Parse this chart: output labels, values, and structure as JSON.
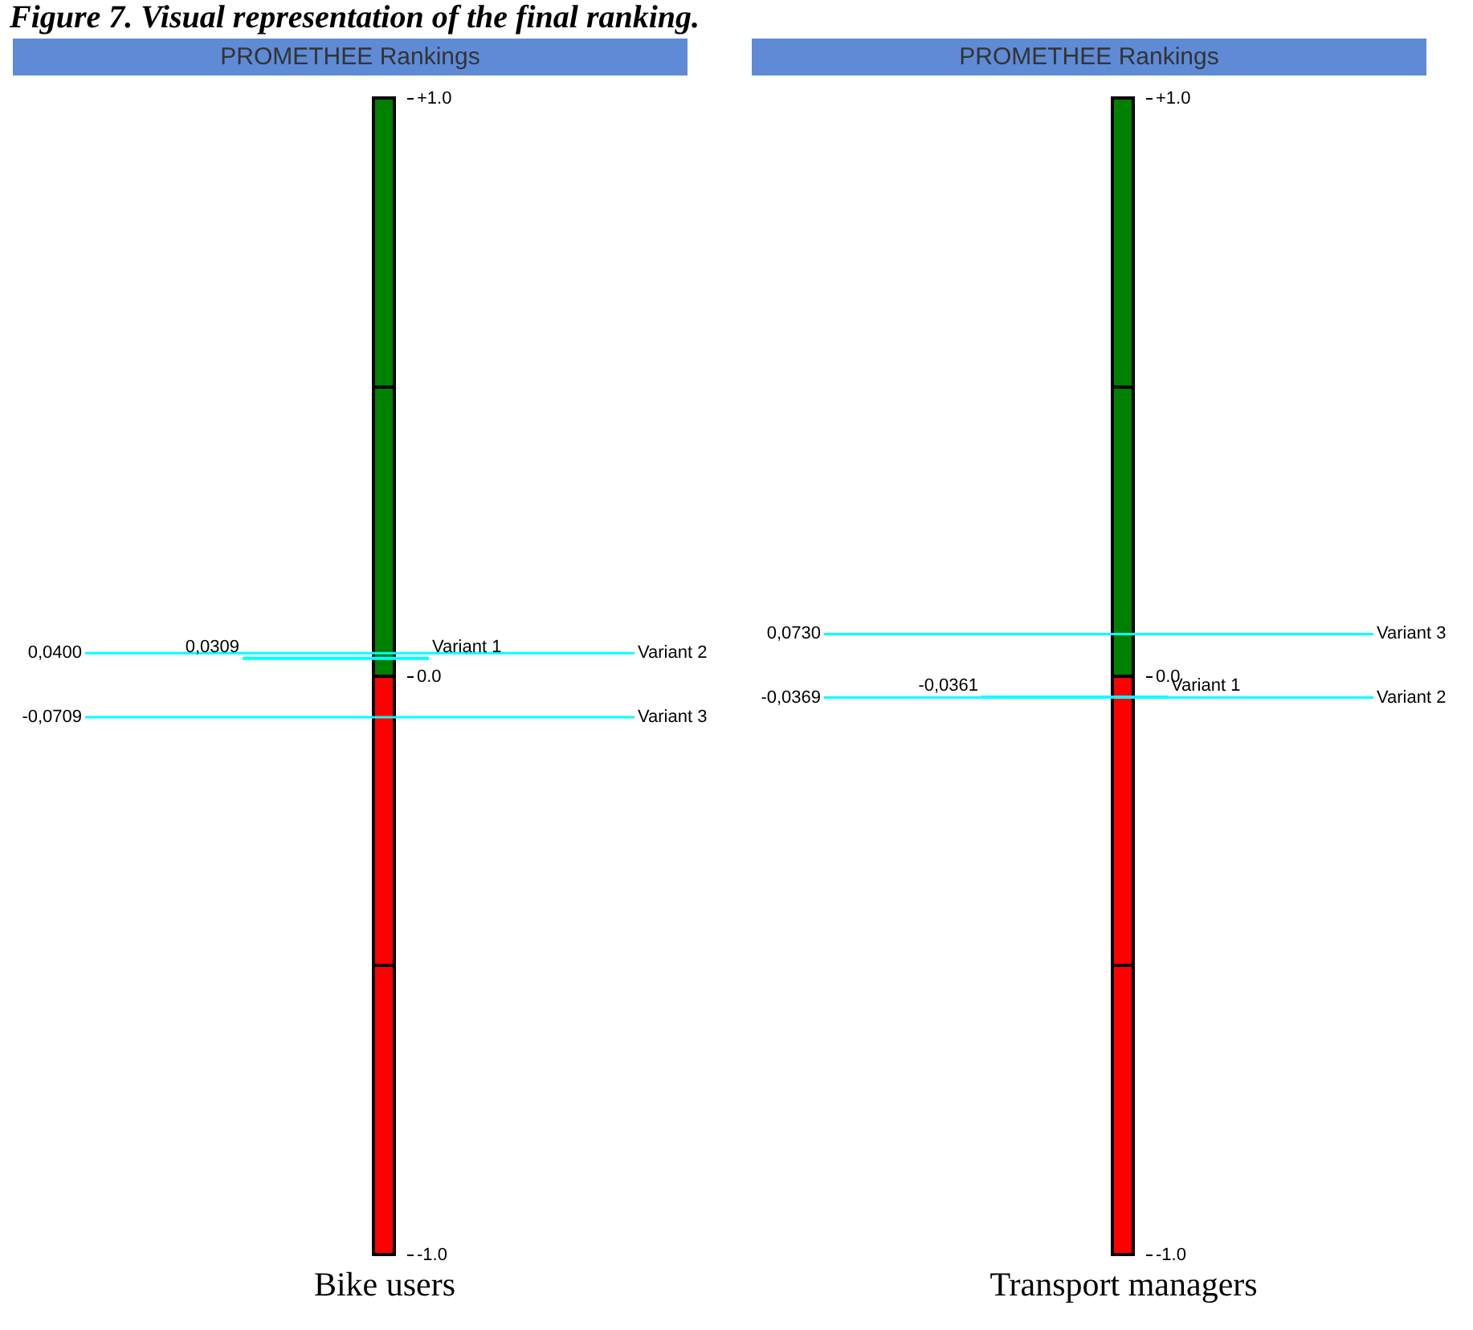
{
  "chart_data": [
    {
      "type": "bar",
      "title": "PROMETHEE Rankings",
      "xlabel": "Bike users",
      "categories": [
        null
      ],
      "stacked": true,
      "series": [
        {
          "color": "#008000",
          "values": [
            0.5
          ]
        },
        {
          "color": "#008000",
          "values": [
            0.5
          ]
        },
        {
          "color": "#ff0000",
          "values": [
            -0.5
          ]
        },
        {
          "color": "#ff0000",
          "values": [
            -0.5
          ]
        }
      ],
      "ylim": [
        -1,
        1
      ],
      "yticks": [
        {
          "value": 1,
          "label": "+1.0"
        },
        {
          "value": 0,
          "label": "0.0"
        },
        {
          "value": -1,
          "label": "-1.0"
        }
      ],
      "ref_lines": [
        {
          "axis": "y",
          "value": 0.04,
          "label": "Variant 2",
          "color": "#00ffff"
        },
        {
          "axis": "y",
          "value": 0.0309,
          "label": "Variant 1",
          "color": "#00ffff"
        },
        {
          "axis": "y",
          "value": -0.0709,
          "label": "Variant 3",
          "color": "#00ffff"
        }
      ],
      "annotations": [
        "Figure 7. Visual representation of the final ranking.",
        "0,0400",
        "0,0309",
        "-0,0709"
      ]
    },
    {
      "type": "bar",
      "title": "PROMETHEE Rankings",
      "xlabel": "Transport managers",
      "categories": [
        null
      ],
      "stacked": true,
      "series": [
        {
          "color": "#008000",
          "values": [
            0.5
          ]
        },
        {
          "color": "#008000",
          "values": [
            0.5
          ]
        },
        {
          "color": "#ff0000",
          "values": [
            -0.5
          ]
        },
        {
          "color": "#ff0000",
          "values": [
            -0.5
          ]
        }
      ],
      "ylim": [
        -1,
        1
      ],
      "yticks": [
        {
          "value": 1,
          "label": "+1.0"
        },
        {
          "value": 0,
          "label": "0.0"
        },
        {
          "value": -1,
          "label": "-1.0"
        }
      ],
      "ref_lines": [
        {
          "axis": "y",
          "value": 0.073,
          "label": "Variant 3",
          "color": "#00ffff"
        },
        {
          "axis": "y",
          "value": -0.0369,
          "label": "Variant 2",
          "color": "#00ffff"
        },
        {
          "axis": "y",
          "value": -0.0361,
          "label": "Variant 1",
          "color": "#00ffff"
        }
      ],
      "annotations": [
        "0,0730",
        "-0,0369",
        "-0,0361"
      ]
    }
  ]
}
